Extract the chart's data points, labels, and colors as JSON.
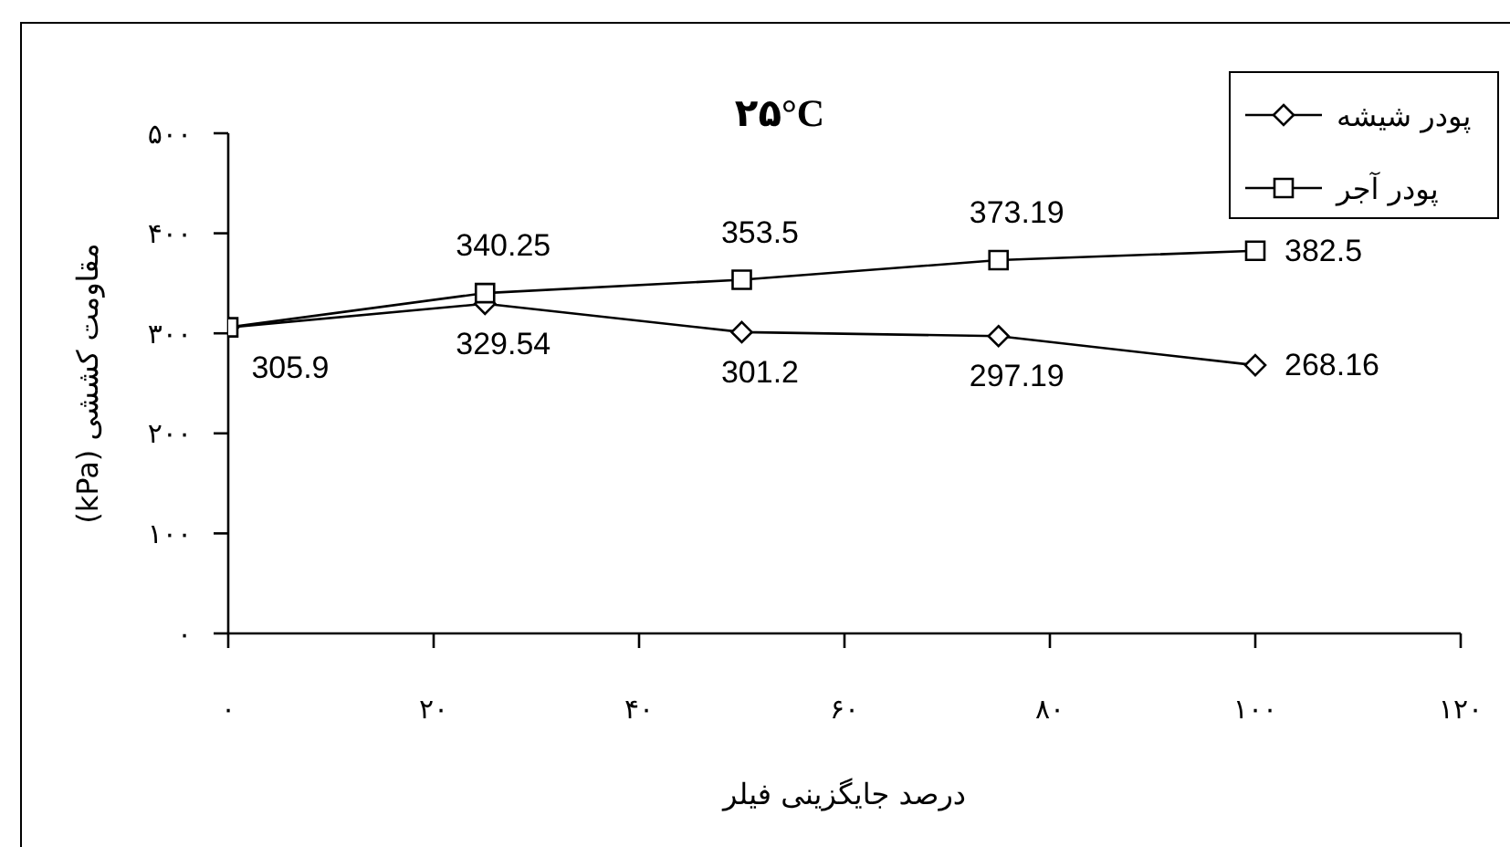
{
  "chart_data": {
    "type": "line",
    "title": "۲۵°C",
    "xlabel": "درصد جایگزینی فیلر",
    "ylabel": "مقاومت کششی  (kPa)",
    "x": [
      0,
      25,
      50,
      75,
      100
    ],
    "xlim": [
      0,
      120
    ],
    "xticks": [
      {
        "value": 0,
        "label": "۰"
      },
      {
        "value": 20,
        "label": "۲۰"
      },
      {
        "value": 40,
        "label": "۴۰"
      },
      {
        "value": 60,
        "label": "۶۰"
      },
      {
        "value": 80,
        "label": "۸۰"
      },
      {
        "value": 100,
        "label": "۱۰۰"
      },
      {
        "value": 120,
        "label": "۱۲۰"
      }
    ],
    "ylim": [
      0,
      500
    ],
    "yticks": [
      {
        "value": 0,
        "label": "۰"
      },
      {
        "value": 100,
        "label": "۱۰۰"
      },
      {
        "value": 200,
        "label": "۲۰۰"
      },
      {
        "value": 300,
        "label": "۳۰۰"
      },
      {
        "value": 400,
        "label": "۴۰۰"
      },
      {
        "value": 500,
        "label": "۵۰۰"
      }
    ],
    "legend": "top right",
    "line_style": "solid",
    "series": [
      {
        "name": "پودر شیشه",
        "color": "#000000",
        "marker": "diamond",
        "values": [
          305.9,
          329.54,
          301.2,
          297.19,
          268.16
        ],
        "value_labels": [
          "305.9",
          "329.54",
          "301.2",
          "297.19",
          "268.16"
        ]
      },
      {
        "name": "پودر آجر",
        "color": "#000000",
        "marker": "square",
        "values": [
          306,
          340.25,
          353.5,
          373.19,
          382.5
        ],
        "value_labels": [
          null,
          "340.25",
          "353.5",
          "373.19",
          "382.5"
        ]
      }
    ]
  }
}
